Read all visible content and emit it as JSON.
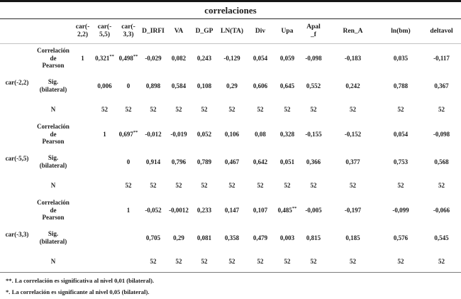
{
  "title": "correlaciones",
  "columns": [
    "car(-\n2,2)",
    "car(-\n5,5)",
    "car(-\n3,3)",
    "D_IRFI",
    "VA",
    "D_GP",
    "LN(TA)",
    "Div",
    "Upa",
    "Apal\n_f",
    "Ren_A",
    "ln(bm)",
    "deltavol"
  ],
  "row_types": {
    "pearson": "Correlación de\nPearson",
    "sig": "Sig. (bilateral)",
    "n": "N"
  },
  "groups": [
    {
      "label": "car(-2,2)",
      "pearson": [
        "1",
        "0,321**",
        "0,498**",
        "-0,029",
        "0,082",
        "0,243",
        "-0,129",
        "0,054",
        "0,059",
        "-0,098",
        "-0,183",
        "0,035",
        "-0,117"
      ],
      "sig": [
        "",
        "0,006",
        "0",
        "0,898",
        "0,584",
        "0,108",
        "0,29",
        "0,606",
        "0,645",
        "0,552",
        "0,242",
        "0,788",
        "0,367"
      ],
      "n": [
        "",
        "52",
        "52",
        "52",
        "52",
        "52",
        "52",
        "52",
        "52",
        "52",
        "52",
        "52",
        "52"
      ]
    },
    {
      "label": "car(-5,5)",
      "pearson": [
        "",
        "1",
        "0,697**",
        "-0,012",
        "-0,019",
        "0,052",
        "0,106",
        "0,08",
        "0,328",
        "-0,155",
        "-0,152",
        "0,054",
        "-0,098"
      ],
      "sig": [
        "",
        "",
        "0",
        "0,914",
        "0,796",
        "0,789",
        "0,467",
        "0,642",
        "0,051",
        "0,366",
        "0,377",
        "0,753",
        "0,568"
      ],
      "n": [
        "",
        "",
        "52",
        "52",
        "52",
        "52",
        "52",
        "52",
        "52",
        "52",
        "52",
        "52",
        "52"
      ]
    },
    {
      "label": "car(-3,3)",
      "pearson": [
        "",
        "",
        "1",
        "-0,052",
        "-0,0012",
        "0,233",
        "0,147",
        "0,107",
        "0,485**",
        "-0,005",
        "-0,197",
        "-0,099",
        "-0,066"
      ],
      "sig": [
        "",
        "",
        "",
        "0,705",
        "0,29",
        "0,081",
        "0,358",
        "0,479",
        "0,003",
        "0,815",
        "0,185",
        "0,576",
        "0,545"
      ],
      "n": [
        "",
        "",
        "",
        "52",
        "52",
        "52",
        "52",
        "52",
        "52",
        "52",
        "52",
        "52",
        "52"
      ]
    }
  ],
  "footnotes": [
    "**. La correlación es significativa al nivel 0,01 (bilateral).",
    "*. La correlación es significante al nivel 0,05 (bilateral)."
  ]
}
